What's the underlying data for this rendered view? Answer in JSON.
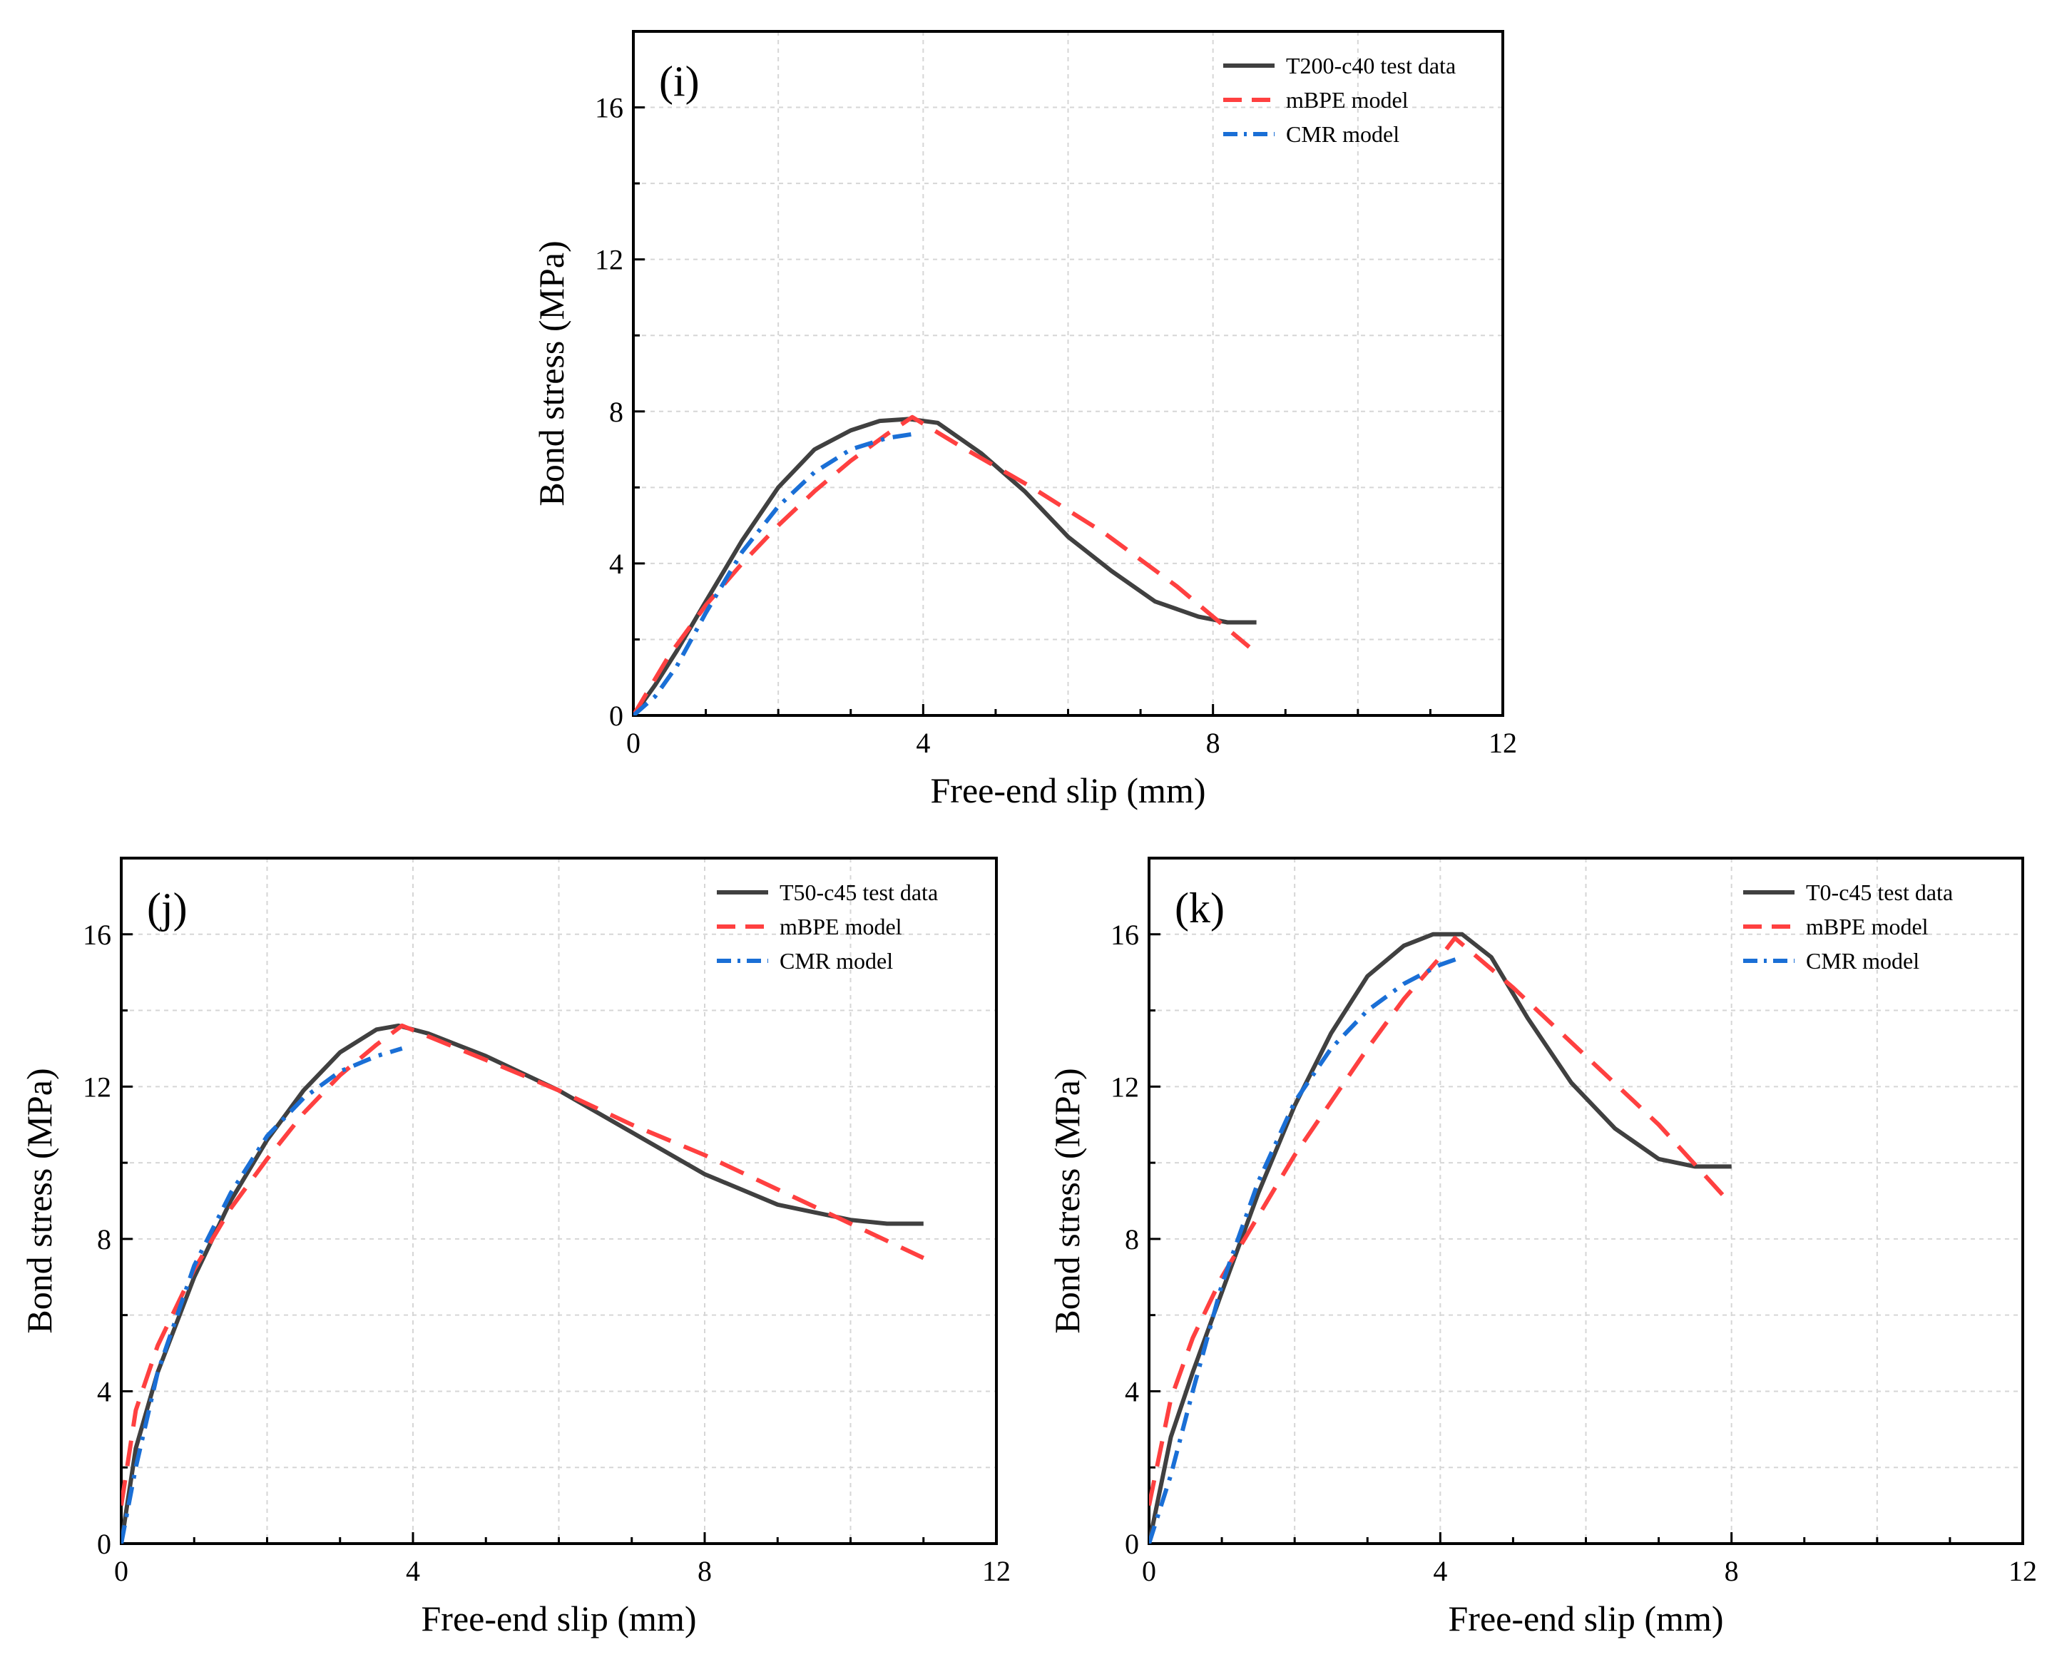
{
  "figure": {
    "panels": [
      {
        "panel_label": "(i)",
        "legend_test": "T200-c40 test data",
        "legend_mbpe": "mBPE model",
        "legend_cmr": "CMR model"
      },
      {
        "panel_label": "(j)",
        "legend_test": "T50-c45 test data",
        "legend_mbpe": "mBPE model",
        "legend_cmr": "CMR model"
      },
      {
        "panel_label": "(k)",
        "legend_test": "T0-c45 test data",
        "legend_mbpe": "mBPE model",
        "legend_cmr": "CMR model"
      }
    ]
  },
  "chart_data": [
    {
      "type": "line",
      "panel": "(i)",
      "xlabel": "Free-end slip (mm)",
      "ylabel": "Bond stress (MPa)",
      "xlim": [
        0,
        12
      ],
      "ylim": [
        0,
        18
      ],
      "xticks": [
        0,
        4,
        8,
        12
      ],
      "yticks": [
        0,
        4,
        8,
        12,
        16
      ],
      "grid": true,
      "legend": "top-right",
      "series": [
        {
          "name": "T200-c40 test data",
          "style": "solid",
          "color": "#404040",
          "x": [
            0,
            0.3,
            0.6,
            1.0,
            1.5,
            2.0,
            2.5,
            3.0,
            3.4,
            3.8,
            4.2,
            4.8,
            5.4,
            6.0,
            6.6,
            7.2,
            7.8,
            8.2,
            8.6
          ],
          "y": [
            0,
            0.8,
            1.7,
            3.0,
            4.6,
            6.0,
            7.0,
            7.5,
            7.75,
            7.8,
            7.7,
            6.9,
            5.9,
            4.7,
            3.8,
            3.0,
            2.6,
            2.45,
            2.45
          ]
        },
        {
          "name": "mBPE model",
          "style": "dashed",
          "color": "#ff4040",
          "x": [
            0,
            0.5,
            1.0,
            1.5,
            2.0,
            2.5,
            3.0,
            3.5,
            3.85,
            4.5,
            5.5,
            6.5,
            7.5,
            8.0,
            8.5
          ],
          "y": [
            0,
            1.6,
            2.9,
            4.0,
            5.0,
            5.9,
            6.7,
            7.4,
            7.85,
            7.1,
            6.0,
            4.8,
            3.4,
            2.6,
            1.8
          ]
        },
        {
          "name": "CMR model",
          "style": "dashdot",
          "color": "#1a6fd6",
          "x": [
            0,
            0.3,
            0.6,
            1.0,
            1.5,
            2.0,
            2.5,
            3.0,
            3.5,
            3.85
          ],
          "y": [
            0,
            0.5,
            1.3,
            2.7,
            4.3,
            5.5,
            6.4,
            7.0,
            7.3,
            7.4
          ]
        }
      ]
    },
    {
      "type": "line",
      "panel": "(j)",
      "xlabel": "Free-end slip (mm)",
      "ylabel": "Bond stress (MPa)",
      "xlim": [
        0,
        12
      ],
      "ylim": [
        0,
        18
      ],
      "xticks": [
        0,
        4,
        8,
        12
      ],
      "yticks": [
        0,
        4,
        8,
        12,
        16
      ],
      "grid": true,
      "legend": "top-right",
      "series": [
        {
          "name": "T50-c45 test data",
          "style": "solid",
          "color": "#404040",
          "x": [
            0,
            0.2,
            0.5,
            1.0,
            1.5,
            2.0,
            2.5,
            3.0,
            3.5,
            3.8,
            4.2,
            5.0,
            6.0,
            7.0,
            8.0,
            9.0,
            10.0,
            10.5,
            11.0
          ],
          "y": [
            0,
            2.5,
            4.5,
            7.0,
            9.0,
            10.6,
            11.9,
            12.9,
            13.5,
            13.6,
            13.4,
            12.8,
            11.9,
            10.8,
            9.7,
            8.9,
            8.5,
            8.4,
            8.4
          ]
        },
        {
          "name": "mBPE model",
          "style": "dashed",
          "color": "#ff4040",
          "x": [
            0,
            0.2,
            0.5,
            1.0,
            1.5,
            2.0,
            2.5,
            3.0,
            3.5,
            3.85,
            5.0,
            6.0,
            7.0,
            8.0,
            9.0,
            10.0,
            11.0
          ],
          "y": [
            1.0,
            3.5,
            5.2,
            7.2,
            8.8,
            10.1,
            11.3,
            12.3,
            13.1,
            13.6,
            12.7,
            11.9,
            11.0,
            10.2,
            9.3,
            8.4,
            7.5
          ]
        },
        {
          "name": "CMR model",
          "style": "dashdot",
          "color": "#1a6fd6",
          "x": [
            0,
            0.2,
            0.5,
            1.0,
            1.5,
            2.0,
            2.5,
            3.0,
            3.5,
            3.85
          ],
          "y": [
            0,
            2.0,
            4.5,
            7.3,
            9.2,
            10.7,
            11.7,
            12.4,
            12.8,
            13.0
          ]
        }
      ]
    },
    {
      "type": "line",
      "panel": "(k)",
      "xlabel": "Free-end slip (mm)",
      "ylabel": "Bond stress (MPa)",
      "xlim": [
        0,
        12
      ],
      "ylim": [
        0,
        18
      ],
      "xticks": [
        0,
        4,
        8,
        12
      ],
      "yticks": [
        0,
        4,
        8,
        12,
        16
      ],
      "grid": true,
      "legend": "top-right",
      "series": [
        {
          "name": "T0-c45 test data",
          "style": "solid",
          "color": "#404040",
          "x": [
            0,
            0.3,
            0.6,
            1.0,
            1.5,
            2.0,
            2.5,
            3.0,
            3.5,
            3.9,
            4.3,
            4.7,
            5.2,
            5.8,
            6.4,
            7.0,
            7.5,
            8.0
          ],
          "y": [
            0,
            2.8,
            4.5,
            6.6,
            9.2,
            11.5,
            13.4,
            14.9,
            15.7,
            16.0,
            16.0,
            15.4,
            13.8,
            12.1,
            10.9,
            10.1,
            9.9,
            9.9
          ]
        },
        {
          "name": "mBPE model",
          "style": "dashed",
          "color": "#ff4040",
          "x": [
            0,
            0.3,
            0.6,
            1.0,
            1.5,
            2.0,
            2.5,
            3.0,
            3.5,
            4.0,
            4.2,
            5.0,
            6.0,
            7.0,
            8.0
          ],
          "y": [
            1.0,
            3.8,
            5.4,
            7.0,
            8.6,
            10.2,
            11.6,
            13.0,
            14.3,
            15.4,
            15.9,
            14.6,
            12.8,
            11.0,
            8.9
          ]
        },
        {
          "name": "CMR model",
          "style": "dashdot",
          "color": "#1a6fd6",
          "x": [
            0,
            0.3,
            0.6,
            1.0,
            1.5,
            2.0,
            2.5,
            3.0,
            3.5,
            4.0,
            4.3
          ],
          "y": [
            0,
            1.8,
            4.0,
            6.8,
            9.5,
            11.6,
            13.0,
            14.0,
            14.7,
            15.2,
            15.4
          ]
        }
      ]
    }
  ]
}
